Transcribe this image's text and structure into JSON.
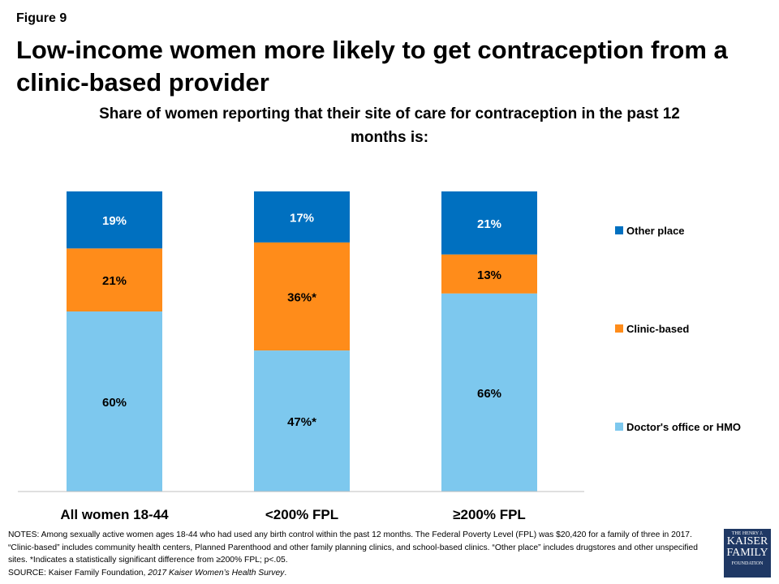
{
  "figure_label": "Figure 9",
  "title": "Low-income women more likely to get contraception from a clinic-based provider",
  "subtitle": "Share of women reporting that their site of care for contraception in the past 12 months is:",
  "chart_data": {
    "type": "bar",
    "stacked": true,
    "categories": [
      "All women 18-44",
      "<200% FPL",
      "≥200% FPL"
    ],
    "ylim": [
      0,
      100
    ],
    "grid": false,
    "legend_placement": "right",
    "series": [
      {
        "name": "Doctor's office or HMO",
        "color": "#7dc8ee",
        "values": [
          60,
          47,
          66
        ],
        "labels": [
          "60%",
          "47%*",
          "66%"
        ]
      },
      {
        "name": "Clinic-based",
        "color": "#ff8c1a",
        "values": [
          21,
          36,
          13
        ],
        "labels": [
          "21%",
          "36%*",
          "13%"
        ]
      },
      {
        "name": "Other place",
        "color": "#0070c0",
        "values": [
          19,
          17,
          21
        ],
        "labels": [
          "19%",
          "17%",
          "21%"
        ]
      }
    ]
  },
  "notes": [
    "NOTES:  Among  sexually active women ages 18-44 who had used any birth control within the past 12 months. The Federal Poverty Level (FPL) was $20,420 for a family of three in 2017.  “Clinic-based” includes community health centers, Planned Parenthood and other family planning clinics, and school-based clinics. “Other place” includes drugstores and other unspecified sites. *Indicates a statistically significant difference from ≥200% FPL; p<.05."
  ],
  "source_prefix": "SOURCE:  Kaiser Family Foundation, ",
  "source_italic": "2017 Kaiser Women’s Health Survey",
  "source_suffix": ".",
  "logo": {
    "line1": "THE HENRY J.",
    "line2": "KAISER",
    "line3": "FAMILY",
    "line4": "FOUNDATION"
  }
}
